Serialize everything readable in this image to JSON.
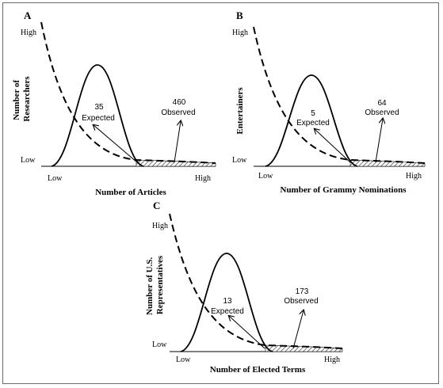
{
  "panels": [
    {
      "letter": "A",
      "y_high": "High",
      "y_low": "Low",
      "x_low": "Low",
      "x_high": "High",
      "y_title_line1": "Number  of",
      "y_title_line2": "Researchers",
      "x_title": "Number  of Articles",
      "expected_value": "35",
      "expected_label": "Expected",
      "observed_value": "460",
      "observed_label": "Observed"
    },
    {
      "letter": "B",
      "y_high": "High",
      "y_low": "Low",
      "x_low": "Low",
      "x_high": "High",
      "y_title_line1": "Entertainers",
      "y_title_line2": "",
      "x_title": "Number  of  Grammy  Nominations",
      "expected_value": "5",
      "expected_label": "Expected",
      "observed_value": "64",
      "observed_label": "Observed"
    },
    {
      "letter": "C",
      "y_high": "High",
      "y_low": "Low",
      "x_low": "Low",
      "x_high": "High",
      "y_title_line1": "Number  of U.S.",
      "y_title_line2": "Representatives",
      "x_title": "Number  of Elected Terms",
      "expected_value": "13",
      "expected_label": "Expected",
      "observed_value": "173",
      "observed_label": "Observed"
    }
  ],
  "curves": {
    "normal_style": "solid",
    "power_law_style": "dashed",
    "tail_fill": "hatched"
  }
}
